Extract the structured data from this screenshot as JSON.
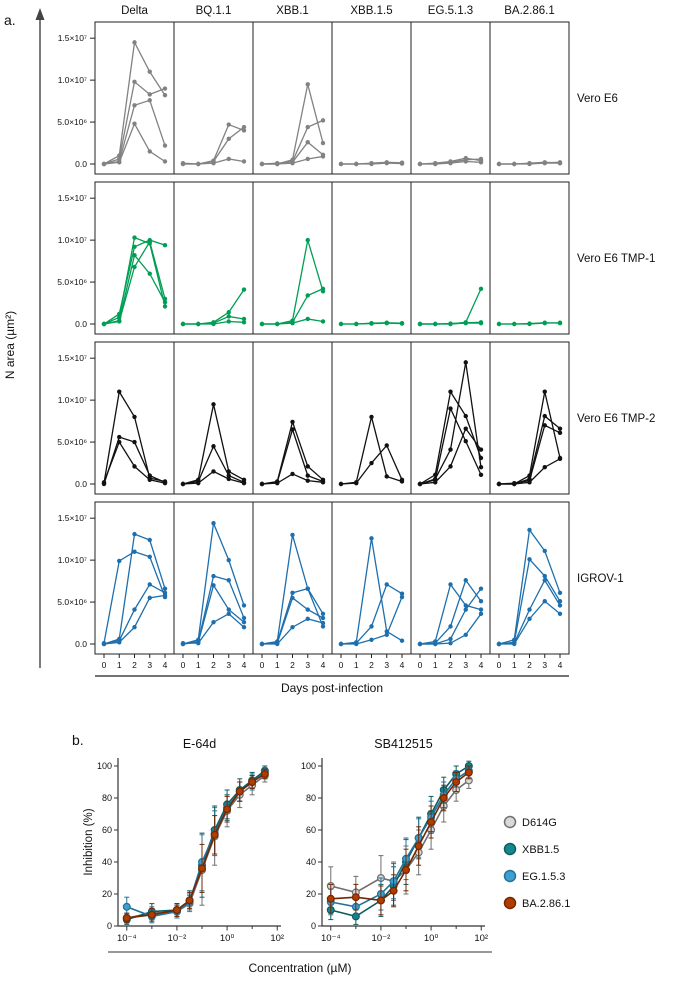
{
  "figure": {
    "panel_a_label": "a.",
    "panel_b_label": "b."
  },
  "chart_data": [
    {
      "id": "panel_a",
      "type": "line",
      "xlabel": "Days post-infection",
      "ylabel": "N area (µm²)",
      "x": [
        0,
        1,
        2,
        3,
        4
      ],
      "xtick_labels": [
        "0",
        "1",
        "2",
        "3",
        "4"
      ],
      "ylim": [
        0,
        15500000
      ],
      "yticks": [
        0,
        5000000,
        10000000,
        15000000
      ],
      "ytick_labels": [
        "0.0",
        "5.0×10⁶",
        "1.0×10⁷",
        "1.5×10⁷"
      ],
      "columns": [
        "Delta",
        "BQ.1.1",
        "XBB.1",
        "XBB.1.5",
        "EG.5.1.3",
        "BA.2.86.1"
      ],
      "rows": [
        {
          "label": "Vero E6",
          "color": "#828282",
          "cells": [
            [
              [
                0,
                1000000,
                14500000,
                11000000,
                8200000
              ],
              [
                0,
                600000,
                9800000,
                8300000,
                9000000
              ],
              [
                0,
                300000,
                7000000,
                7600000,
                2200000
              ],
              [
                0,
                200000,
                4800000,
                1500000,
                300000
              ]
            ],
            [
              [
                0,
                0,
                400000,
                4700000,
                4000000
              ],
              [
                100000,
                0,
                300000,
                3000000,
                4400000
              ],
              [
                0,
                0,
                100000,
                600000,
                300000
              ]
            ],
            [
              [
                0,
                0,
                500000,
                9500000,
                2500000
              ],
              [
                0,
                0,
                300000,
                4400000,
                5200000
              ],
              [
                0,
                100000,
                200000,
                2600000,
                1100000
              ],
              [
                0,
                0,
                100000,
                600000,
                900000
              ]
            ],
            [
              [
                0,
                0,
                100000,
                200000,
                150000
              ],
              [
                0,
                0,
                50000,
                150000,
                100000
              ],
              [
                0,
                0,
                0,
                100000,
                50000
              ]
            ],
            [
              [
                0,
                100000,
                300000,
                700000,
                400000
              ],
              [
                0,
                0,
                200000,
                500000,
                600000
              ],
              [
                0,
                0,
                100000,
                300000,
                200000
              ]
            ],
            [
              [
                0,
                0,
                100000,
                200000,
                100000
              ],
              [
                0,
                0,
                50000,
                150000,
                200000
              ],
              [
                0,
                0,
                0,
                100000,
                100000
              ]
            ]
          ]
        },
        {
          "label": "Vero E6 TMP-1",
          "color": "#009e54",
          "cells": [
            [
              [
                0,
                800000,
                10300000,
                9600000,
                2100000
              ],
              [
                0,
                1200000,
                9200000,
                10000000,
                9400000
              ],
              [
                0,
                400000,
                8200000,
                6000000,
                2600000
              ],
              [
                0,
                300000,
                6800000,
                9800000,
                3000000
              ]
            ],
            [
              [
                0,
                0,
                200000,
                1400000,
                4100000
              ],
              [
                0,
                0,
                100000,
                900000,
                600000
              ],
              [
                0,
                0,
                0,
                300000,
                200000
              ]
            ],
            [
              [
                0,
                0,
                400000,
                10000000,
                3900000
              ],
              [
                0,
                0,
                200000,
                3400000,
                4200000
              ],
              [
                0,
                0,
                100000,
                600000,
                300000
              ]
            ],
            [
              [
                0,
                0,
                100000,
                150000,
                100000
              ],
              [
                0,
                0,
                50000,
                100000,
                50000
              ]
            ],
            [
              [
                0,
                0,
                0,
                200000,
                4200000
              ],
              [
                0,
                0,
                50000,
                150000,
                200000
              ],
              [
                0,
                0,
                0,
                100000,
                100000
              ]
            ],
            [
              [
                0,
                0,
                50000,
                150000,
                100000
              ],
              [
                0,
                0,
                0,
                100000,
                150000
              ]
            ]
          ]
        },
        {
          "label": "Vero E6 TMP-2",
          "color": "#111111",
          "cells": [
            [
              [
                100000,
                11000000,
                8000000,
                700000,
                300000
              ],
              [
                0,
                5600000,
                5000000,
                1000000,
                200000
              ],
              [
                200000,
                5000000,
                2100000,
                500000,
                100000
              ]
            ],
            [
              [
                0,
                500000,
                9500000,
                1500000,
                500000
              ],
              [
                0,
                300000,
                4500000,
                1000000,
                200000
              ],
              [
                0,
                100000,
                1500000,
                600000,
                100000
              ]
            ],
            [
              [
                0,
                300000,
                7400000,
                2100000,
                500000
              ],
              [
                0,
                200000,
                6500000,
                1000000,
                300000
              ],
              [
                0,
                100000,
                1200000,
                400000,
                200000
              ]
            ],
            [
              [
                0,
                200000,
                8000000,
                900000,
                300000
              ],
              [
                0,
                100000,
                2500000,
                4600000,
                500000
              ]
            ],
            [
              [
                0,
                600000,
                4100000,
                14500000,
                2000000
              ],
              [
                0,
                1100000,
                11000000,
                8100000,
                3100000
              ],
              [
                0,
                500000,
                9000000,
                5100000,
                1100000
              ],
              [
                0,
                200000,
                2100000,
                6600000,
                4100000
              ]
            ],
            [
              [
                0,
                0,
                1000000,
                11000000,
                3100000
              ],
              [
                0,
                0,
                600000,
                8100000,
                6600000
              ],
              [
                0,
                100000,
                400000,
                7000000,
                6100000
              ],
              [
                0,
                0,
                200000,
                2000000,
                3000000
              ]
            ]
          ]
        },
        {
          "label": "IGROV-1",
          "color": "#1d6fae",
          "cells": [
            [
              [
                0,
                600000,
                13100000,
                12400000,
                6600000
              ],
              [
                100000,
                9900000,
                11000000,
                10400000,
                5600000
              ],
              [
                0,
                400000,
                4100000,
                7100000,
                6100000
              ],
              [
                0,
                200000,
                2000000,
                5500000,
                5800000
              ]
            ],
            [
              [
                0,
                500000,
                14400000,
                10000000,
                4600000
              ],
              [
                0,
                300000,
                8100000,
                7600000,
                3100000
              ],
              [
                0,
                200000,
                7000000,
                4100000,
                2600000
              ],
              [
                100000,
                100000,
                2600000,
                3600000,
                2000000
              ]
            ],
            [
              [
                0,
                300000,
                13000000,
                6600000,
                3600000
              ],
              [
                0,
                200000,
                6100000,
                6600000,
                2100000
              ],
              [
                0,
                100000,
                5500000,
                4100000,
                3100000
              ],
              [
                0,
                0,
                2000000,
                3000000,
                2500000
              ]
            ],
            [
              [
                0,
                200000,
                12600000,
                1500000,
                400000
              ],
              [
                0,
                100000,
                2100000,
                7100000,
                6000000
              ],
              [
                0,
                0,
                500000,
                1100000,
                5600000
              ]
            ],
            [
              [
                0,
                300000,
                7100000,
                4600000,
                4100000
              ],
              [
                0,
                100000,
                2100000,
                7600000,
                5100000
              ],
              [
                0,
                0,
                600000,
                4100000,
                6600000
              ],
              [
                0,
                0,
                100000,
                1100000,
                3600000
              ]
            ],
            [
              [
                0,
                500000,
                13600000,
                11100000,
                6100000
              ],
              [
                0,
                200000,
                10100000,
                8100000,
                5100000
              ],
              [
                0,
                100000,
                4100000,
                7600000,
                4600000
              ],
              [
                0,
                0,
                3000000,
                5100000,
                3600000
              ]
            ]
          ]
        }
      ]
    },
    {
      "id": "panel_b",
      "type": "line",
      "xlabel": "Concentration (µM)",
      "ylabel": "Inhibition (%)",
      "xscale": "log",
      "ylim": [
        0,
        105
      ],
      "yticks": [
        0,
        20,
        40,
        60,
        80,
        100
      ],
      "xticks": [
        0.0001,
        0.01,
        1,
        100
      ],
      "xtick_labels": [
        "10⁻⁴",
        "10⁻²",
        "10⁰",
        "10²"
      ],
      "x": [
        0.0001,
        0.001,
        0.01,
        0.032,
        0.1,
        0.32,
        1,
        3.2,
        10,
        32
      ],
      "subplots": [
        {
          "title": "E-64d",
          "series": [
            {
              "name": "D614G",
              "values": [
                5,
                8,
                9,
                14,
                35,
                56,
                72,
                82,
                88,
                94
              ],
              "err": [
                3,
                4,
                4,
                5,
                22,
                18,
                10,
                8,
                6,
                4
              ]
            },
            {
              "name": "XBB1.5",
              "values": [
                4,
                9,
                10,
                16,
                38,
                60,
                76,
                85,
                91,
                97
              ],
              "err": [
                3,
                5,
                4,
                6,
                20,
                15,
                9,
                7,
                5,
                3
              ]
            },
            {
              "name": "EG.1.5.3",
              "values": [
                12,
                6,
                9,
                15,
                40,
                58,
                74,
                84,
                90,
                96
              ],
              "err": [
                6,
                4,
                4,
                5,
                18,
                14,
                8,
                6,
                5,
                3
              ]
            },
            {
              "name": "BA.2.86.1",
              "values": [
                5,
                7,
                10,
                16,
                36,
                57,
                73,
                84,
                90,
                95
              ],
              "err": [
                3,
                4,
                4,
                5,
                15,
                12,
                8,
                6,
                4,
                3
              ]
            }
          ]
        },
        {
          "title": "SB412515",
          "series": [
            {
              "name": "D614G",
              "values": [
                25,
                21,
                30,
                28,
                35,
                46,
                60,
                75,
                85,
                91
              ],
              "err": [
                12,
                10,
                14,
                12,
                15,
                14,
                12,
                10,
                7,
                5
              ]
            },
            {
              "name": "XBB1.5",
              "values": [
                10,
                6,
                16,
                25,
                40,
                55,
                70,
                85,
                95,
                100
              ],
              "err": [
                6,
                5,
                10,
                12,
                14,
                13,
                11,
                8,
                5,
                3
              ]
            },
            {
              "name": "EG.1.5.3",
              "values": [
                15,
                12,
                20,
                28,
                42,
                55,
                68,
                82,
                92,
                97
              ],
              "err": [
                8,
                7,
                10,
                11,
                13,
                12,
                10,
                8,
                5,
                3
              ]
            },
            {
              "name": "BA.2.86.1",
              "values": [
                17,
                18,
                16,
                22,
                35,
                50,
                65,
                80,
                90,
                96
              ],
              "err": [
                9,
                8,
                9,
                10,
                13,
                12,
                10,
                8,
                6,
                4
              ]
            }
          ]
        }
      ],
      "legend": [
        {
          "label": "D614G",
          "fill": "#d9d9d9",
          "edge": "#6f6f6f"
        },
        {
          "label": "XBB1.5",
          "fill": "#16888c",
          "edge": "#0b5c5f"
        },
        {
          "label": "EG.1.5.3",
          "fill": "#3f9fce",
          "edge": "#23729b"
        },
        {
          "label": "BA.2.86.1",
          "fill": "#b03c00",
          "edge": "#742700"
        }
      ]
    }
  ]
}
